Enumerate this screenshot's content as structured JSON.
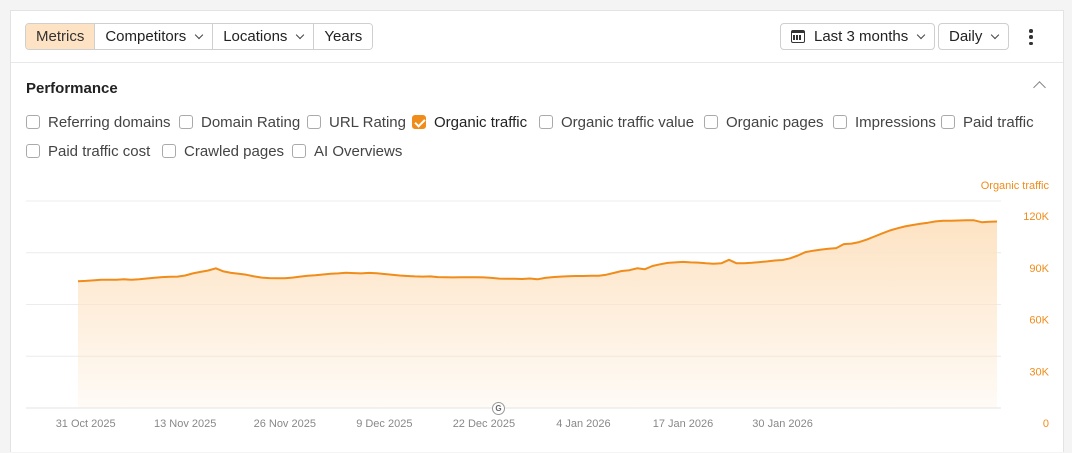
{
  "toolbar": {
    "tabs": [
      {
        "label": "Metrics",
        "active": true
      },
      {
        "label": "Competitors",
        "dropdown": true
      },
      {
        "label": "Locations",
        "dropdown": true
      },
      {
        "label": "Years"
      }
    ],
    "date_range": "Last 3 months",
    "interval": "Daily"
  },
  "performance": {
    "title": "Performance",
    "metrics": [
      {
        "label": "Referring domains",
        "checked": false
      },
      {
        "label": "Domain Rating",
        "checked": false
      },
      {
        "label": "URL Rating",
        "checked": false
      },
      {
        "label": "Organic traffic",
        "checked": true
      },
      {
        "label": "Organic traffic value",
        "checked": false
      },
      {
        "label": "Organic pages",
        "checked": false
      },
      {
        "label": "Impressions",
        "checked": false
      },
      {
        "label": "Paid traffic",
        "checked": false
      },
      {
        "label": "Paid traffic cost",
        "checked": false
      },
      {
        "label": "Crawled pages",
        "checked": false
      },
      {
        "label": "AI Overviews",
        "checked": false
      }
    ]
  },
  "colors": {
    "accent": "#f08c1a",
    "fill": "#fde3c4"
  },
  "annotation_marker": "G",
  "chart_data": {
    "type": "area",
    "series": [
      {
        "name": "Organic traffic",
        "color": "#f08c1a"
      }
    ],
    "y_axis_title": "Organic traffic",
    "y_ticks": [
      "0",
      "30K",
      "60K",
      "90K",
      "120K"
    ],
    "y_tick_values": [
      0,
      30000,
      60000,
      90000,
      120000
    ],
    "ylim": [
      0,
      120000
    ],
    "x_ticks": [
      "31 Oct 2025",
      "13 Nov 2025",
      "26 Nov 2025",
      "9 Dec 2025",
      "22 Dec 2025",
      "4 Jan 2026",
      "17 Jan 2026",
      "30 Jan 2026"
    ],
    "x_start": "2025-10-30",
    "values": [
      73500,
      73700,
      74000,
      74300,
      74400,
      74400,
      74600,
      74300,
      74600,
      75100,
      75500,
      75900,
      76100,
      76200,
      76800,
      78000,
      78900,
      79700,
      81000,
      79200,
      78300,
      77800,
      77200,
      76300,
      75600,
      75300,
      75200,
      75200,
      75600,
      76200,
      76700,
      77000,
      77400,
      77800,
      78000,
      78400,
      78200,
      78000,
      78300,
      78100,
      77700,
      77200,
      76800,
      76500,
      76300,
      76200,
      76300,
      75900,
      75800,
      75700,
      75800,
      75800,
      75800,
      75700,
      75400,
      75000,
      74900,
      74900,
      74800,
      75100,
      74600,
      75400,
      75900,
      76200,
      76400,
      76500,
      76500,
      76700,
      76700,
      77300,
      78300,
      79400,
      79900,
      81000,
      80400,
      82300,
      83300,
      84100,
      84400,
      84700,
      84400,
      84300,
      83900,
      83600,
      83900,
      85900,
      83900,
      83900,
      84200,
      84600,
      85000,
      85500,
      85800,
      86800,
      88400,
      90400,
      91200,
      91800,
      92300,
      92700,
      95000,
      95300,
      96200,
      97600,
      99400,
      101200,
      102900,
      104200,
      105300,
      106100,
      106800,
      107400,
      108200,
      108500,
      108500,
      108700,
      108800,
      108800,
      107700,
      108000,
      108100
    ]
  }
}
